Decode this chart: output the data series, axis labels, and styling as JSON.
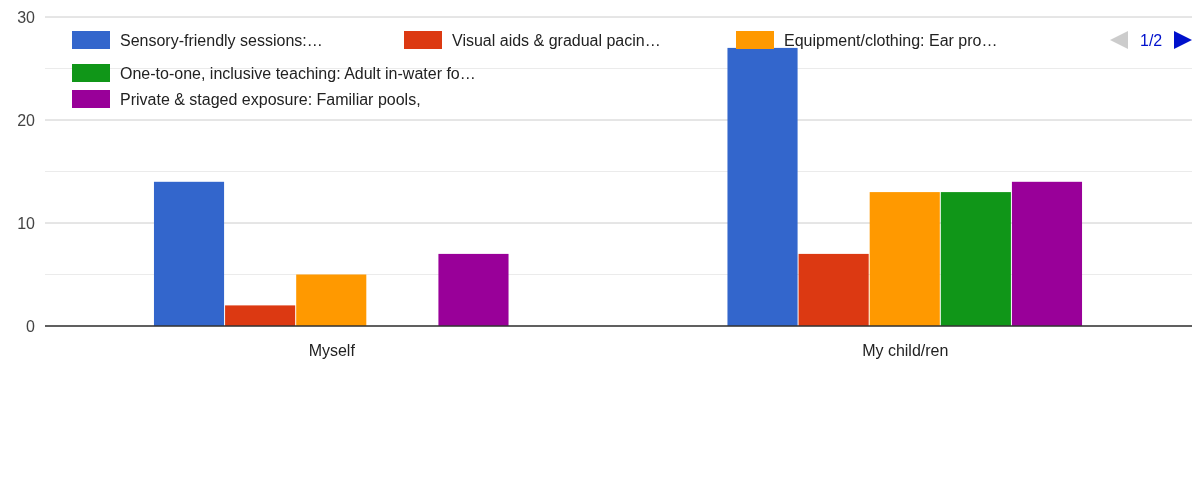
{
  "chart_data": {
    "type": "bar",
    "categories": [
      "Myself",
      "My child/ren"
    ],
    "series": [
      {
        "name": "Sensory-friendly sessions:…",
        "color": "#3366cc",
        "values": [
          14,
          27
        ]
      },
      {
        "name": "Visual aids & gradual pacin…",
        "color": "#dc3912",
        "values": [
          2,
          7
        ]
      },
      {
        "name": "Equipment/clothing: Ear pro…",
        "color": "#ff9900",
        "values": [
          5,
          13
        ]
      },
      {
        "name": "One-to-one, inclusive teaching: Adult in-water fo…",
        "color": "#109618",
        "values": [
          0,
          13
        ]
      },
      {
        "name": "Private & staged exposure: Familiar pools,",
        "color": "#990099",
        "values": [
          7,
          14
        ]
      }
    ],
    "ylim": [
      0,
      30
    ],
    "yticks": [
      0,
      {
        "value": 5,
        "label": null
      },
      10,
      {
        "value": 15,
        "label": null
      },
      20,
      {
        "value": 25,
        "label": null
      },
      30
    ],
    "grid": true,
    "legend": "top",
    "annotations": [
      "1/2"
    ]
  }
}
